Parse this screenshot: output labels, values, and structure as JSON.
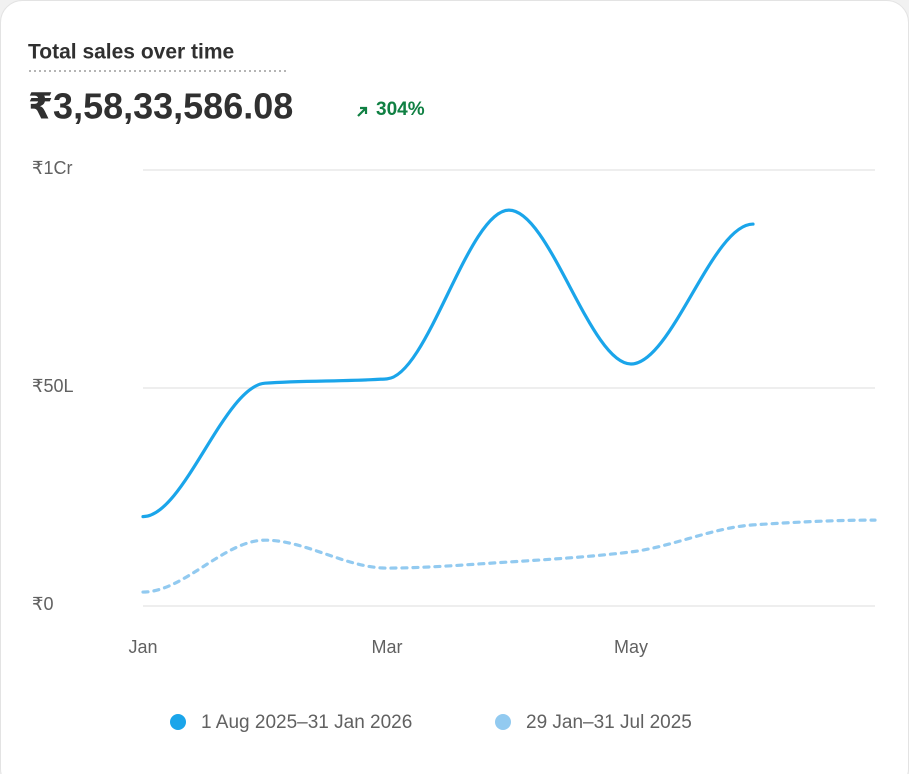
{
  "header": {
    "title": "Total sales over time",
    "total": "₹3,58,33,586.08",
    "change": "304%"
  },
  "chart_data": {
    "type": "line",
    "categories": [
      "Jan",
      null,
      "Mar",
      null,
      "May",
      null,
      null
    ],
    "series": [
      {
        "name": "1 Aug 2025–31 Jan 2026",
        "color": "#1aa5ea",
        "values": [
          2050000,
          5110000,
          5210000,
          9080000,
          5550000,
          8760000,
          null
        ]
      },
      {
        "name": "29 Jan–31 Jul 2025",
        "color": "#92caf0",
        "dashed": true,
        "values": [
          320000,
          1510000,
          870000,
          1010000,
          1240000,
          1860000,
          1970000
        ]
      }
    ],
    "ylim": [
      0,
      10000000
    ],
    "yticks": [
      {
        "value": 0,
        "label": "₹0"
      },
      {
        "value": 5000000,
        "label": "₹50L"
      },
      {
        "value": 10000000,
        "label": "₹1Cr"
      }
    ],
    "grid": true
  }
}
